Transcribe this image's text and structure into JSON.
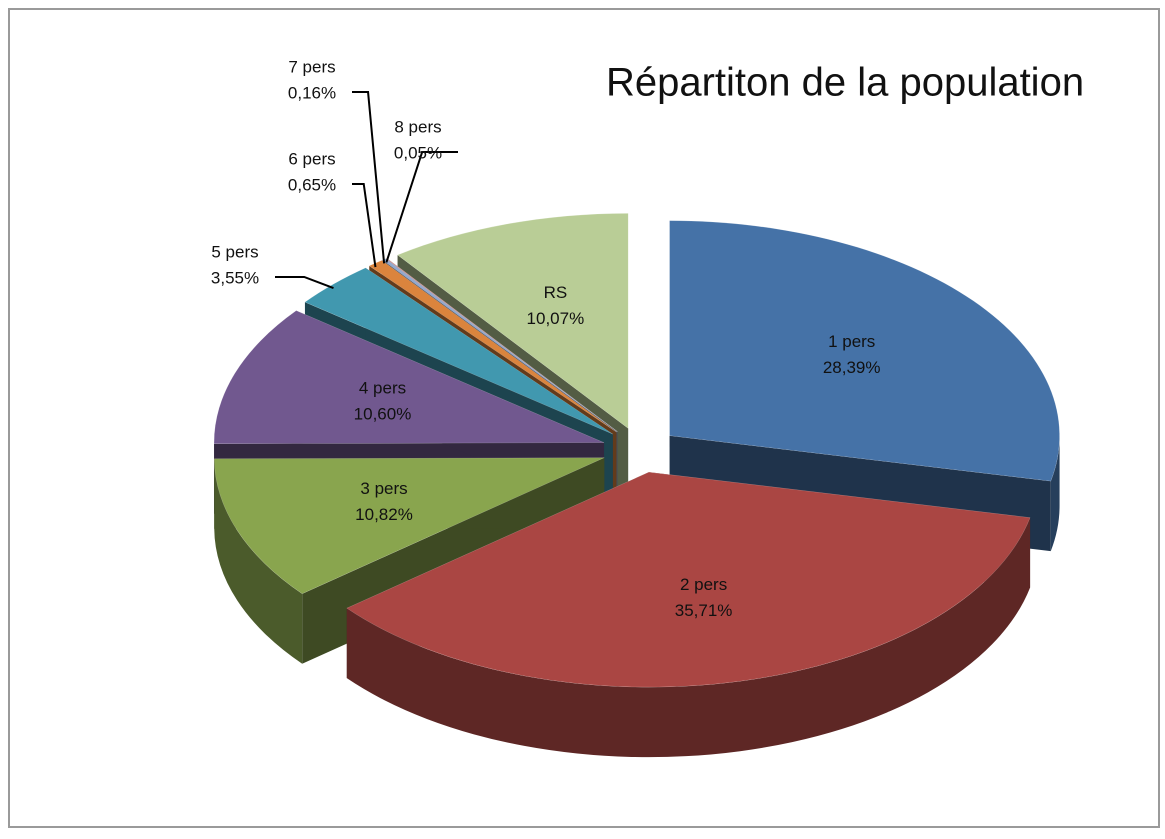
{
  "chart_data": {
    "type": "pie",
    "title": "Répartiton de la population",
    "categories": [
      "1 pers",
      "2 pers",
      "3 pers",
      "4 pers",
      "5 pers",
      "6 pers",
      "7 pers",
      "8 pers",
      "RS"
    ],
    "values": [
      28.39,
      35.71,
      10.82,
      10.6,
      3.55,
      0.65,
      0.16,
      0.05,
      10.07
    ],
    "value_labels": [
      "28,39%",
      "35,71%",
      "10,82%",
      "10,60%",
      "3,55%",
      "0,65%",
      "0,16%",
      "0,05%",
      "10,07%"
    ],
    "colors": [
      "#4572a7",
      "#aa4643",
      "#89a54e",
      "#71588f",
      "#4198af",
      "#db843d",
      "#93a9cf",
      "#d19392",
      "#b9cd96"
    ],
    "exploded": true,
    "three_d": true
  }
}
